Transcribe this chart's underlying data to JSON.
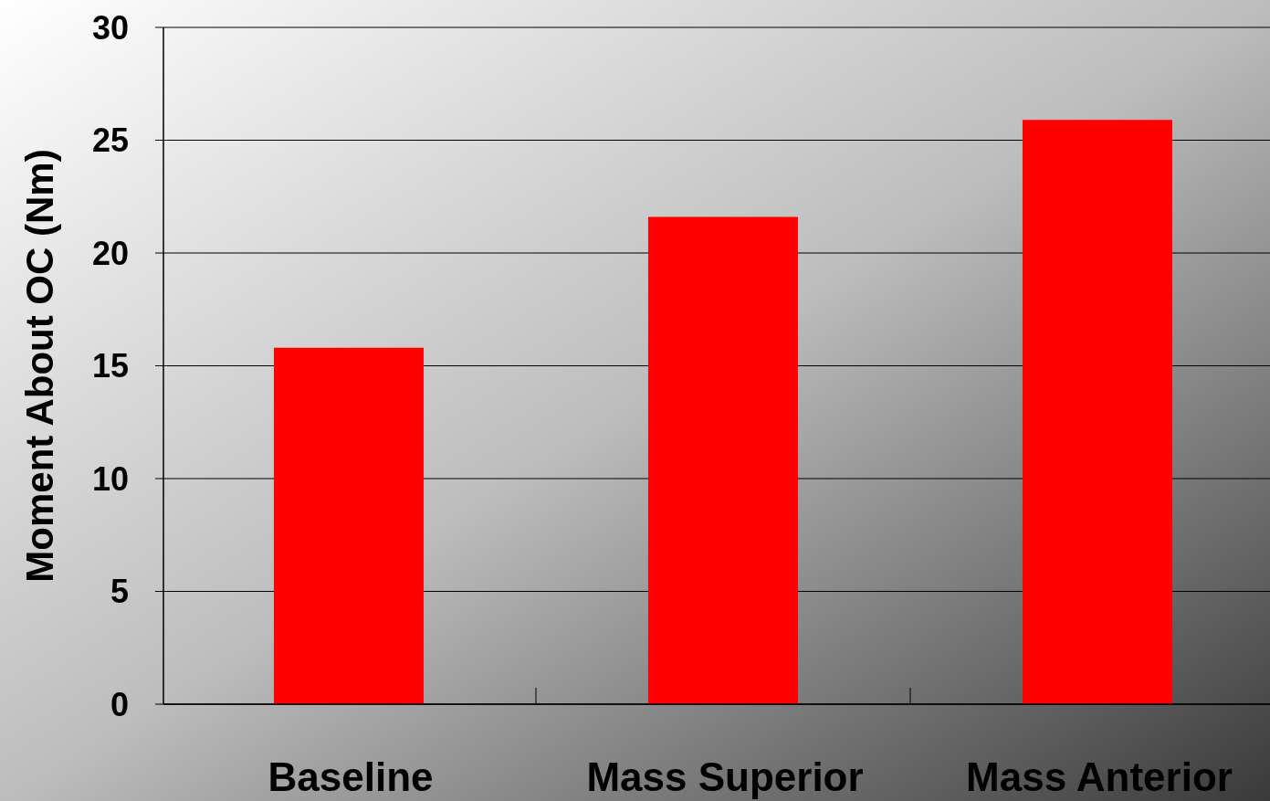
{
  "chart_data": {
    "type": "bar",
    "ylabel": "Moment About OC (Nm)",
    "categories": [
      "Baseline",
      "Mass Superior",
      "Mass Anterior"
    ],
    "values": [
      15.8,
      21.6,
      25.9
    ],
    "color": "#ff0000",
    "ylim": [
      0,
      30
    ],
    "yticks": [
      0,
      5,
      10,
      15,
      20,
      25,
      30
    ],
    "grid": "y"
  }
}
